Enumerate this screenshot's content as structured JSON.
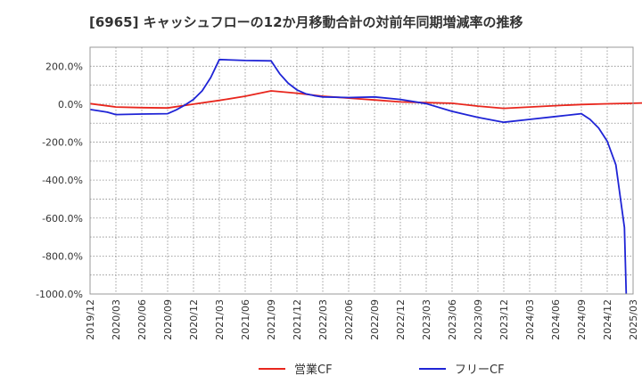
{
  "chart_data": {
    "type": "line",
    "title": "[6965]  キャッシュフローの12か月移動合計の対前年同期増減率の推移",
    "xlabel": "",
    "ylabel": "",
    "ylim": [
      -1000,
      300
    ],
    "yticks": [
      200,
      0,
      -200,
      -400,
      -600,
      -800,
      -1000
    ],
    "ytick_labels": [
      "200.0%",
      "0.0%",
      "-200.0%",
      "-400.0%",
      "-600.0%",
      "-800.0%",
      "-1000.0%"
    ],
    "x_range": [
      "2019/12",
      "2025/03"
    ],
    "xtick_labels": [
      "2019/12",
      "2020/03",
      "2020/06",
      "2020/09",
      "2020/12",
      "2021/03",
      "2021/06",
      "2021/09",
      "2021/12",
      "2022/03",
      "2022/06",
      "2022/09",
      "2022/12",
      "2023/03",
      "2023/06",
      "2023/09",
      "2023/12",
      "2024/03",
      "2024/06",
      "2024/09",
      "2024/12",
      "2025/03"
    ],
    "grid": true,
    "legend_position": "bottom",
    "series": [
      {
        "name": "営業CF",
        "color": "#e8261d",
        "points": [
          [
            0,
            3
          ],
          [
            3,
            -15
          ],
          [
            6,
            -18
          ],
          [
            9,
            -20
          ],
          [
            12,
            0
          ],
          [
            15,
            20
          ],
          [
            18,
            42
          ],
          [
            21,
            70
          ],
          [
            24,
            58
          ],
          [
            27,
            42
          ],
          [
            30,
            32
          ],
          [
            33,
            22
          ],
          [
            36,
            12
          ],
          [
            39,
            8
          ],
          [
            42,
            5
          ],
          [
            45,
            -10
          ],
          [
            48,
            -22
          ],
          [
            51,
            -15
          ],
          [
            54,
            -8
          ],
          [
            57,
            -2
          ],
          [
            60,
            2
          ],
          [
            63,
            5
          ],
          [
            66,
            8
          ]
        ]
      },
      {
        "name": "フリーCF",
        "color": "#1f24d6",
        "points": [
          [
            0,
            -28
          ],
          [
            1,
            -35
          ],
          [
            2,
            -42
          ],
          [
            3,
            -55
          ],
          [
            6,
            -52
          ],
          [
            9,
            -50
          ],
          [
            10,
            -30
          ],
          [
            11,
            -5
          ],
          [
            12,
            25
          ],
          [
            13,
            70
          ],
          [
            14,
            140
          ],
          [
            15,
            235
          ],
          [
            18,
            230
          ],
          [
            21,
            228
          ],
          [
            22,
            160
          ],
          [
            23,
            110
          ],
          [
            24,
            75
          ],
          [
            25,
            55
          ],
          [
            26,
            45
          ],
          [
            27,
            38
          ],
          [
            30,
            35
          ],
          [
            33,
            38
          ],
          [
            36,
            25
          ],
          [
            39,
            3
          ],
          [
            42,
            -38
          ],
          [
            45,
            -70
          ],
          [
            48,
            -95
          ],
          [
            51,
            -80
          ],
          [
            54,
            -65
          ],
          [
            57,
            -50
          ],
          [
            58,
            -80
          ],
          [
            59,
            -125
          ],
          [
            60,
            -195
          ],
          [
            61,
            -320
          ],
          [
            62,
            -650
          ],
          [
            62.2,
            -1000
          ]
        ]
      }
    ]
  }
}
